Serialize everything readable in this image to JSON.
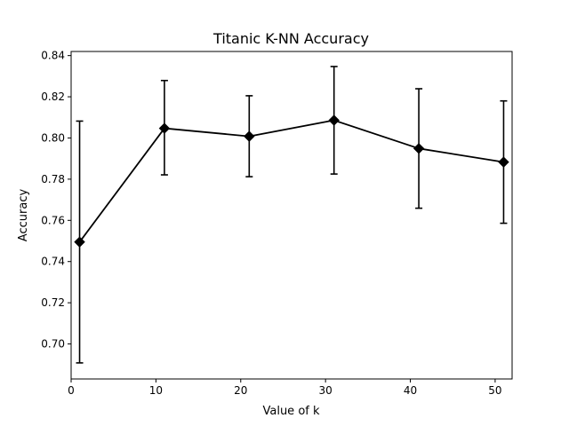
{
  "chart_data": {
    "type": "line",
    "title": "Titanic K-NN Accuracy",
    "xlabel": "Value of k",
    "ylabel": "Accuracy",
    "xlim": [
      0,
      52
    ],
    "ylim": [
      0.683,
      0.842
    ],
    "xticks": [
      0,
      10,
      20,
      30,
      40,
      50
    ],
    "xtick_labels": [
      "0",
      "10",
      "20",
      "30",
      "40",
      "50"
    ],
    "yticks": [
      0.7,
      0.72,
      0.74,
      0.76,
      0.78,
      0.8,
      0.82,
      0.84
    ],
    "ytick_labels": [
      "0.70",
      "0.72",
      "0.74",
      "0.76",
      "0.78",
      "0.80",
      "0.82",
      "0.84"
    ],
    "grid": false,
    "line_color": "#000000",
    "marker": "diamond",
    "series": [
      {
        "x": [
          1,
          11,
          21,
          31,
          41,
          51
        ],
        "y": [
          0.7495,
          0.8047,
          0.8008,
          0.8086,
          0.7949,
          0.7883
        ],
        "err_low": [
          0.6908,
          0.7821,
          0.7812,
          0.7825,
          0.7659,
          0.7586
        ],
        "err_high": [
          0.8082,
          0.8279,
          0.8205,
          0.8347,
          0.8239,
          0.818
        ]
      }
    ]
  }
}
